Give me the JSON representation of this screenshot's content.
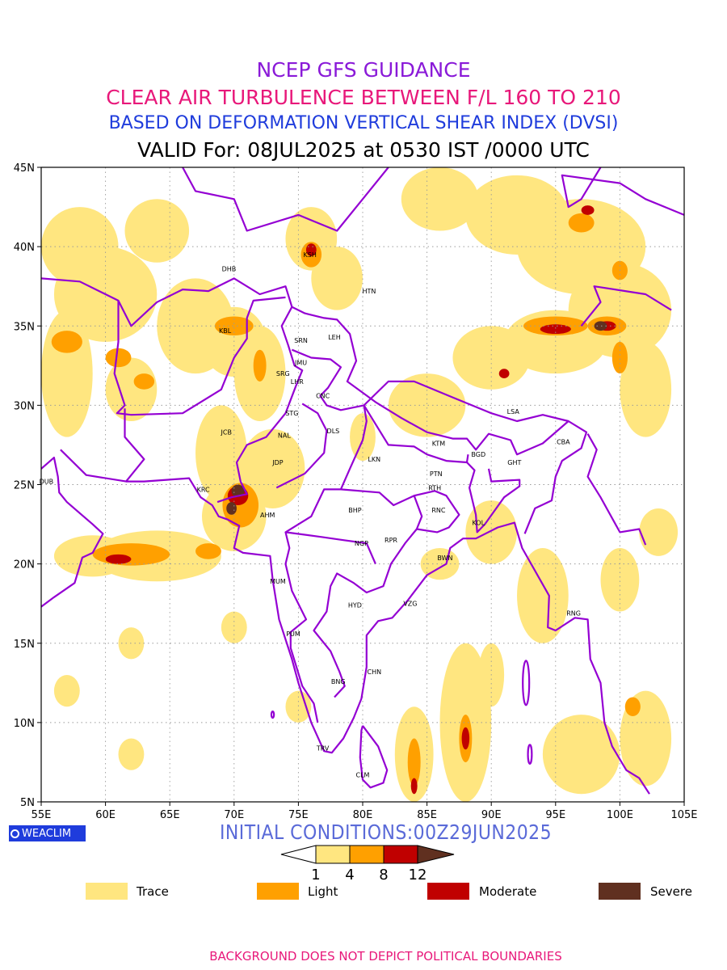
{
  "titles": {
    "line1": "NCEP GFS GUIDANCE",
    "line2": "CLEAR AIR TURBULENCE BETWEEN F/L 160 TO 210",
    "line3": "BASED ON DEFORMATION VERTICAL SHEAR INDEX (DVSI)",
    "line4": "VALID For: 08JUL2025 at 0530 IST /0000 UTC"
  },
  "colors": {
    "title1": "#8a1ad8",
    "title2": "#e8187a",
    "title3": "#1f3cdc",
    "title4": "#000000",
    "init": "#5a6ad8",
    "footer": "#e8187a",
    "boundary": "#9400d3",
    "logo_bg": "#1f3cdc",
    "grid": "#9a9a9a"
  },
  "axes": {
    "lat_labels": [
      "45N",
      "40N",
      "35N",
      "30N",
      "25N",
      "20N",
      "15N",
      "10N",
      "5N"
    ],
    "lon_labels": [
      "55E",
      "60E",
      "65E",
      "70E",
      "75E",
      "80E",
      "85E",
      "90E",
      "95E",
      "100E",
      "105E"
    ],
    "lat_range": [
      5,
      45
    ],
    "lon_range": [
      55,
      105
    ],
    "grid": "dotted"
  },
  "stations": [
    {
      "code": "KSH",
      "lon": 75.9,
      "lat": 39.5
    },
    {
      "code": "DHB",
      "lon": 69.6,
      "lat": 38.6
    },
    {
      "code": "HTN",
      "lon": 80.5,
      "lat": 37.2
    },
    {
      "code": "KBL",
      "lon": 69.3,
      "lat": 34.7
    },
    {
      "code": "SRN",
      "lon": 75.2,
      "lat": 34.1
    },
    {
      "code": "LEH",
      "lon": 77.8,
      "lat": 34.3
    },
    {
      "code": "JMU",
      "lon": 75.2,
      "lat": 32.7
    },
    {
      "code": "SRG",
      "lon": 73.8,
      "lat": 32.0
    },
    {
      "code": "LHR",
      "lon": 74.9,
      "lat": 31.5
    },
    {
      "code": "CNC",
      "lon": 76.9,
      "lat": 30.6
    },
    {
      "code": "LSA",
      "lon": 91.7,
      "lat": 29.6
    },
    {
      "code": "STG",
      "lon": 74.5,
      "lat": 29.5
    },
    {
      "code": "JCB",
      "lon": 69.4,
      "lat": 28.3
    },
    {
      "code": "NAL",
      "lon": 73.9,
      "lat": 28.1
    },
    {
      "code": "DLS",
      "lon": 77.7,
      "lat": 28.4
    },
    {
      "code": "KTM",
      "lon": 85.9,
      "lat": 27.6
    },
    {
      "code": "CBA",
      "lon": 95.6,
      "lat": 27.7
    },
    {
      "code": "LKN",
      "lon": 80.9,
      "lat": 26.6
    },
    {
      "code": "BGD",
      "lon": 89.0,
      "lat": 26.9
    },
    {
      "code": "GHT",
      "lon": 91.8,
      "lat": 26.4
    },
    {
      "code": "JDP",
      "lon": 73.4,
      "lat": 26.4
    },
    {
      "code": "PTN",
      "lon": 85.7,
      "lat": 25.7
    },
    {
      "code": "DUB",
      "lon": 55.4,
      "lat": 25.2
    },
    {
      "code": "KRC",
      "lon": 67.6,
      "lat": 24.7
    },
    {
      "code": "RTH",
      "lon": 85.6,
      "lat": 24.8
    },
    {
      "code": "AHM",
      "lon": 72.6,
      "lat": 23.1
    },
    {
      "code": "BHP",
      "lon": 79.4,
      "lat": 23.4
    },
    {
      "code": "RNC",
      "lon": 85.9,
      "lat": 23.4
    },
    {
      "code": "KOL",
      "lon": 89.0,
      "lat": 22.6
    },
    {
      "code": "NGP",
      "lon": 79.9,
      "lat": 21.3
    },
    {
      "code": "RPR",
      "lon": 82.2,
      "lat": 21.5
    },
    {
      "code": "BWN",
      "lon": 86.4,
      "lat": 20.4
    },
    {
      "code": "MUM",
      "lon": 73.4,
      "lat": 18.9
    },
    {
      "code": "HYD",
      "lon": 79.4,
      "lat": 17.4
    },
    {
      "code": "VZG",
      "lon": 83.7,
      "lat": 17.5
    },
    {
      "code": "RNG",
      "lon": 96.4,
      "lat": 16.9
    },
    {
      "code": "PUM",
      "lon": 74.6,
      "lat": 15.6
    },
    {
      "code": "CHN",
      "lon": 80.9,
      "lat": 13.2
    },
    {
      "code": "BNG",
      "lon": 78.1,
      "lat": 12.6
    },
    {
      "code": "TRV",
      "lon": 76.9,
      "lat": 8.4
    },
    {
      "code": "CLM",
      "lon": 80.0,
      "lat": 6.7
    }
  ],
  "scale": {
    "ticks": [
      "1",
      "4",
      "8",
      "12"
    ],
    "colors": [
      "#ffe680",
      "#ffa000",
      "#c00000",
      "#603020"
    ]
  },
  "legend": [
    {
      "label": "Trace",
      "color": "#ffe680"
    },
    {
      "label": "Light",
      "color": "#ffa000"
    },
    {
      "label": "Moderate",
      "color": "#c00000"
    },
    {
      "label": "Severe",
      "color": "#603020"
    }
  ],
  "logo_text": "WEACLIM",
  "initial_conditions": "INITIAL CONDITIONS:00Z29JUN2025",
  "footer": "BACKGROUND DOES NOT DEPICT POLITICAL BOUNDARIES"
}
